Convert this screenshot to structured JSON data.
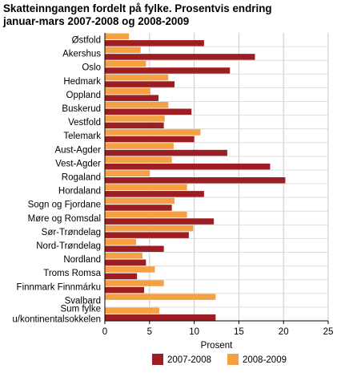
{
  "title_line1": "Skatteinngangen fordelt på fylke. Prosentvis endring",
  "title_line2": "januar-mars 2007-2008 og 2008-2009",
  "chart_data": {
    "type": "bar",
    "orientation": "horizontal",
    "xlabel": "Prosent",
    "xlim": [
      0,
      25
    ],
    "xticks": [
      0,
      5,
      10,
      15,
      20,
      25
    ],
    "grid": true,
    "legend": "bottom",
    "categories": [
      "Østfold",
      "Akershus",
      "Oslo",
      "Hedmark",
      "Oppland",
      "Buskerud",
      "Vestfold",
      "Telemark",
      "Aust-Agder",
      "Vest-Agder",
      "Rogaland",
      "Hordaland",
      "Sogn og Fjordane",
      "Møre og Romsdal",
      "Sør-Trøndelag",
      "Nord-Trøndelag",
      "Nordland",
      "Troms Romsa",
      "Finnmark Finnmárku",
      "Svalbard",
      "Sum fylke u/kontinentalsokkelen"
    ],
    "series": [
      {
        "name": "2007-2008",
        "color": "#9c1e22",
        "values": [
          11.1,
          16.8,
          14.0,
          7.8,
          6.0,
          9.7,
          6.6,
          10.0,
          13.7,
          18.5,
          20.2,
          11.1,
          7.5,
          12.2,
          9.4,
          6.6,
          4.6,
          3.6,
          4.4,
          0,
          12.4
        ]
      },
      {
        "name": "2008-2009",
        "color": "#f5a043",
        "values": [
          2.7,
          4.0,
          4.6,
          7.1,
          5.1,
          7.1,
          6.7,
          10.7,
          7.7,
          7.5,
          5.0,
          9.2,
          7.8,
          9.2,
          9.9,
          3.5,
          4.2,
          5.6,
          6.6,
          12.4,
          6.1
        ]
      }
    ]
  }
}
